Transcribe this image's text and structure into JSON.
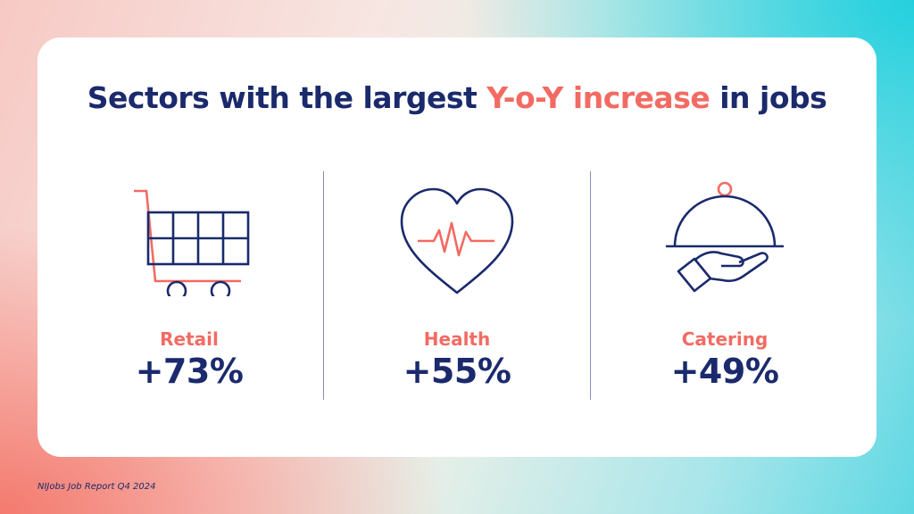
{
  "headline": {
    "before": "Sectors with the largest ",
    "accent": "Y-o-Y increase",
    "after": " in jobs"
  },
  "sectors": [
    {
      "name": "Retail",
      "value": "+73%",
      "icon": "shopping-cart-icon"
    },
    {
      "name": "Health",
      "value": "+55%",
      "icon": "heart-pulse-icon"
    },
    {
      "name": "Catering",
      "value": "+49%",
      "icon": "cloche-hand-icon"
    }
  ],
  "footer": "NIJobs Job Report Q4 2024",
  "colors": {
    "navy": "#1a2a6c",
    "coral": "#f26b63",
    "card": "#ffffff"
  }
}
